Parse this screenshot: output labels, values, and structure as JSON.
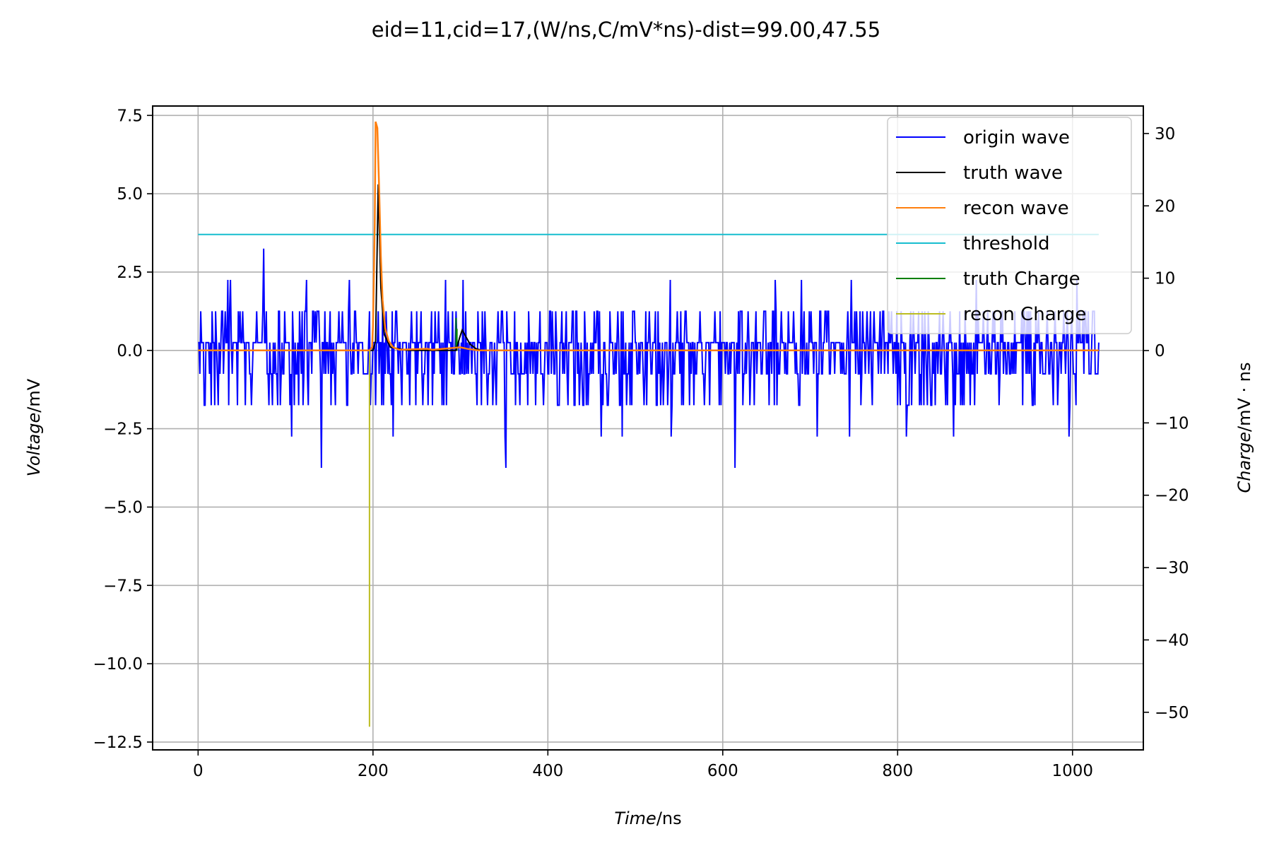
{
  "chart_data": {
    "type": "line",
    "title": "eid=11,cid=17,(W/ns,C/mV*ns)-dist=99.00,47.55",
    "xlabel_italic": "Time",
    "xlabel_unit": "/ns",
    "ylabel_italic": "Voltage",
    "ylabel_unit": "/mV",
    "y2label_italic": "Charge",
    "y2label_unit": "/mV · ns",
    "xlim": [
      -52,
      1081
    ],
    "ylim": [
      -12.75,
      7.8
    ],
    "y2lim": [
      -55.2,
      33.8
    ],
    "xticks": [
      0,
      200,
      400,
      600,
      800,
      1000
    ],
    "xtick_labels": [
      "0",
      "200",
      "400",
      "600",
      "800",
      "1000"
    ],
    "yticks": [
      7.5,
      5.0,
      2.5,
      0.0,
      -2.5,
      -5.0,
      -7.5,
      -10.0,
      -12.5
    ],
    "ytick_labels": [
      "7.5",
      "5.0",
      "2.5",
      "0.0",
      "−2.5",
      "−5.0",
      "−7.5",
      "−10.0",
      "−12.5"
    ],
    "y2ticks": [
      30,
      20,
      10,
      0,
      -10,
      -20,
      -30,
      -40,
      -50
    ],
    "y2tick_labels": [
      "30",
      "20",
      "10",
      "0",
      "−10",
      "−20",
      "−30",
      "−40",
      "−50"
    ],
    "grid": true,
    "legend_position": "top-right",
    "legend": [
      "origin wave",
      "truth wave",
      "recon wave",
      "threshold",
      "truth Charge",
      "recon Charge"
    ],
    "colors": {
      "origin wave": "#0000ff",
      "truth wave": "#000000",
      "recon wave": "#ff7f0e",
      "threshold": "#17becf",
      "truth Charge": "#007f00",
      "recon Charge": "#bcbd22"
    },
    "series": {
      "origin_wave": {
        "x_start": 0,
        "x_step": 1,
        "levels": [
          -0.75,
          0.25,
          1.25,
          2.25
        ],
        "outliers": [
          {
            "x": 75,
            "y": 3.25
          },
          {
            "x": 141,
            "y": -3.75
          },
          {
            "x": 352,
            "y": -3.75
          },
          {
            "x": 614,
            "y": -3.75
          },
          {
            "x": 107,
            "y": -2.75
          },
          {
            "x": 223,
            "y": -2.75
          },
          {
            "x": 351,
            "y": -2.75
          },
          {
            "x": 461,
            "y": -2.75
          },
          {
            "x": 485,
            "y": -2.75
          },
          {
            "x": 541,
            "y": -2.75
          },
          {
            "x": 708,
            "y": -2.75
          },
          {
            "x": 745,
            "y": -2.75
          },
          {
            "x": 810,
            "y": -2.75
          },
          {
            "x": 864,
            "y": -2.75
          },
          {
            "x": 996,
            "y": -2.75
          },
          {
            "x": 34,
            "y": 2.25
          },
          {
            "x": 37,
            "y": 2.25
          },
          {
            "x": 124,
            "y": 2.25
          },
          {
            "x": 173,
            "y": 2.25
          },
          {
            "x": 283,
            "y": 2.25
          },
          {
            "x": 303,
            "y": 2.25
          },
          {
            "x": 540,
            "y": 2.25
          },
          {
            "x": 660,
            "y": 2.25
          },
          {
            "x": 690,
            "y": 2.25
          },
          {
            "x": 747,
            "y": 2.25
          },
          {
            "x": 890,
            "y": 2.25
          },
          {
            "x": 1005,
            "y": 2.25
          }
        ]
      },
      "truth_wave": {
        "points": [
          [
            0,
            0
          ],
          [
            200,
            0
          ],
          [
            203,
            0.3
          ],
          [
            206,
            5.3
          ],
          [
            209,
            2.0
          ],
          [
            213,
            0.5
          ],
          [
            220,
            0.1
          ],
          [
            240,
            0
          ],
          [
            295,
            0
          ],
          [
            299,
            0.4
          ],
          [
            302,
            0.65
          ],
          [
            306,
            0.45
          ],
          [
            311,
            0.2
          ],
          [
            318,
            0.05
          ],
          [
            325,
            0
          ],
          [
            1030,
            0
          ]
        ]
      },
      "recon_wave": {
        "points": [
          [
            0,
            0
          ],
          [
            196,
            0
          ],
          [
            199,
            0.1
          ],
          [
            200,
            0.8
          ],
          [
            202,
            4.0
          ],
          [
            203,
            7.3
          ],
          [
            205,
            7.1
          ],
          [
            207,
            5.2
          ],
          [
            209,
            3.0
          ],
          [
            211,
            1.6
          ],
          [
            214,
            0.7
          ],
          [
            218,
            0.3
          ],
          [
            223,
            0.1
          ],
          [
            230,
            0.02
          ],
          [
            262,
            0.05
          ],
          [
            268,
            0.02
          ],
          [
            300,
            0.1
          ],
          [
            308,
            0.05
          ],
          [
            320,
            0
          ],
          [
            1030,
            0
          ]
        ]
      },
      "threshold": {
        "y": 3.7,
        "x": [
          0,
          1030
        ]
      },
      "truth_charge": {
        "stems": [
          {
            "x": 295,
            "value": 4.5
          },
          {
            "x": 296,
            "value": 3.0
          }
        ]
      },
      "recon_charge": {
        "stems": [
          {
            "x": 196,
            "value": -52
          }
        ]
      }
    }
  }
}
